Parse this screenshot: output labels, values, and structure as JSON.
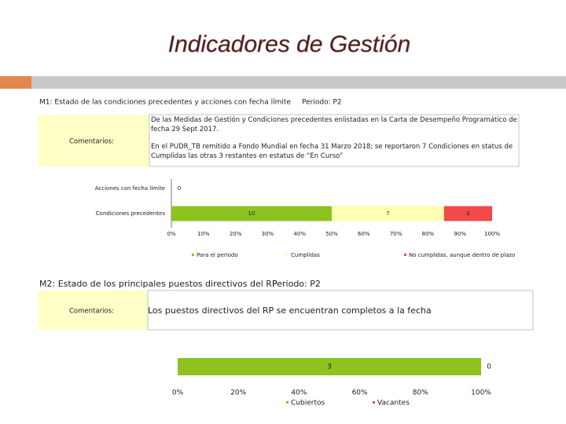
{
  "title": "Indicadores de Gestión",
  "sections": [
    {
      "heading": "M1: Estado de las condiciones precedentes y acciones con fecha límite",
      "period": "Periodo: P2",
      "comment_label": "Comentarios:",
      "comments": [
        "De las Medidas de Gestión y Condiciones precedentes enlistadas en la Carta de Desempeño Programático de fecha 29 Sept 2017.",
        "En el PUDR_TB remitido a Fondo Mundial en fecha 31 Marzo 2018; se reportaron 7 Condiciones en status de Cumplidas las otras 3 restantes en estatus de “En Curso”"
      ]
    },
    {
      "heading": "M2: Estado de los principales puestos directivos del RP",
      "period": "Periodo: P2",
      "comment_label": "Comentarios:",
      "comments": [
        "Los puestos directivos del RP se encuentran completos a la fecha"
      ]
    }
  ],
  "chart_data": [
    {
      "type": "bar",
      "orientation": "horizontal",
      "stacking": "percent",
      "categories": [
        "Acciones con fecha límite",
        "Condiciones precedentes"
      ],
      "series": [
        {
          "name": "Para el periodo",
          "color": "#8dc21f",
          "values": [
            0,
            10
          ]
        },
        {
          "name": "Cumplidas",
          "color": "#ffffb3",
          "values": [
            null,
            7
          ]
        },
        {
          "name": "No cumplidas, aunque dentro de plazo",
          "color": "#f04a4a",
          "values": [
            null,
            3
          ]
        }
      ],
      "xlim": [
        0,
        100
      ],
      "xticks": [
        {
          "value": 0,
          "label": "0%"
        },
        {
          "value": 10,
          "label": "10%"
        },
        {
          "value": 20,
          "label": "20%"
        },
        {
          "value": 30,
          "label": "30%"
        },
        {
          "value": 40,
          "label": "40%"
        },
        {
          "value": 50,
          "label": "50%"
        },
        {
          "value": 60,
          "label": "60%"
        },
        {
          "value": 70,
          "label": "70%"
        },
        {
          "value": 80,
          "label": "80%"
        },
        {
          "value": 90,
          "label": "90%"
        },
        {
          "value": 100,
          "label": "100%"
        }
      ]
    },
    {
      "type": "bar",
      "orientation": "horizontal",
      "stacking": "percent",
      "categories": [
        null
      ],
      "series": [
        {
          "name": "Cubiertos",
          "color": "#8dc21f",
          "values": [
            3
          ]
        },
        {
          "name": "Vacantes",
          "color": "#f04a4a",
          "values": [
            0
          ]
        }
      ],
      "xlim": [
        0,
        100
      ],
      "xticks": [
        {
          "value": 0,
          "label": "0%"
        },
        {
          "value": 20,
          "label": "20%"
        },
        {
          "value": 40,
          "label": "40%"
        },
        {
          "value": 60,
          "label": "60%"
        },
        {
          "value": 80,
          "label": "80%"
        },
        {
          "value": 100,
          "label": "100%"
        }
      ]
    }
  ]
}
